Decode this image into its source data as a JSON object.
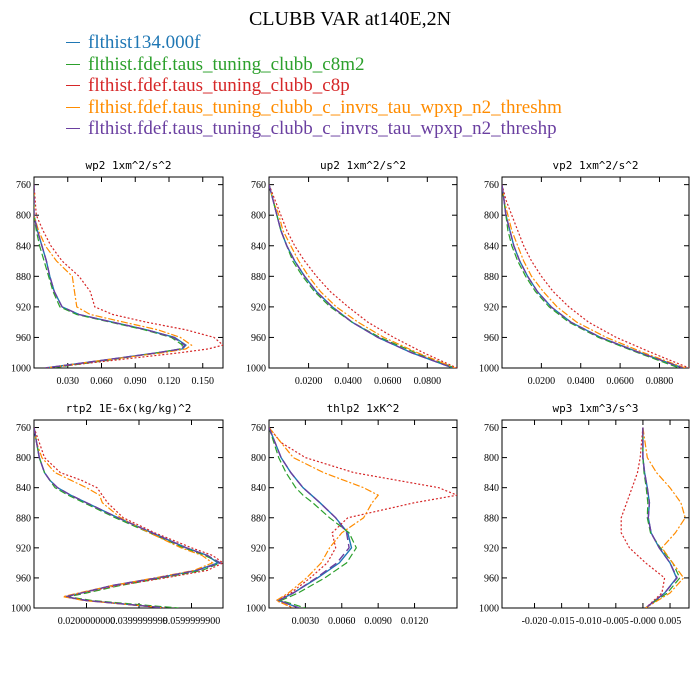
{
  "title": "CLUBB VAR at140E,2N",
  "legend": [
    {
      "label": "flthist134.000f",
      "color": "#1f77b4"
    },
    {
      "label": "flthist.fdef.taus_tuning_clubb_c8m2",
      "color": "#2ca02c"
    },
    {
      "label": "flthist.fdef.taus_tuning_clubb_c8p",
      "color": "#d62728"
    },
    {
      "label": "flthist.fdef.taus_tuning_clubb_c_invrs_tau_wpxp_n2_threshm",
      "color": "#ff8c00"
    },
    {
      "label": "flthist.fdef.taus_tuning_clubb_c_invrs_tau_wpxp_n2_threshp",
      "color": "#6a3fa0"
    }
  ],
  "chart_data": [
    {
      "type": "line",
      "title": "wp2  1xm^2/s^2",
      "xlim": [
        0,
        0.168
      ],
      "ylim": [
        1000,
        750
      ],
      "xticks": [
        0.03,
        0.06,
        0.09,
        0.12,
        0.15
      ],
      "xtick_labels": [
        "0.030",
        "0.060",
        "0.090",
        "0.120",
        "0.150"
      ],
      "yticks": [
        760,
        800,
        840,
        880,
        920,
        960,
        1000
      ],
      "y": [
        760,
        800,
        820,
        840,
        860,
        880,
        900,
        920,
        930,
        940,
        950,
        960,
        970,
        975,
        980,
        990,
        1000
      ],
      "series": [
        {
          "values": [
            0,
            0,
            0.003,
            0.007,
            0.011,
            0.014,
            0.018,
            0.025,
            0.04,
            0.07,
            0.1,
            0.125,
            0.135,
            0.132,
            0.11,
            0.06,
            0.01
          ]
        },
        {
          "values": [
            0,
            0,
            0.002,
            0.005,
            0.009,
            0.013,
            0.017,
            0.023,
            0.038,
            0.068,
            0.098,
            0.122,
            0.132,
            0.13,
            0.11,
            0.065,
            0.015
          ]
        },
        {
          "values": [
            0,
            0.002,
            0.008,
            0.015,
            0.025,
            0.04,
            0.05,
            0.054,
            0.07,
            0.1,
            0.135,
            0.16,
            0.168,
            0.155,
            0.13,
            0.07,
            0.01
          ]
        },
        {
          "values": [
            0,
            0,
            0.004,
            0.01,
            0.02,
            0.034,
            0.036,
            0.038,
            0.05,
            0.08,
            0.11,
            0.13,
            0.14,
            0.135,
            0.115,
            0.06,
            0.01
          ]
        },
        {
          "values": [
            0,
            0,
            0.003,
            0.007,
            0.011,
            0.014,
            0.018,
            0.025,
            0.04,
            0.07,
            0.1,
            0.124,
            0.134,
            0.131,
            0.11,
            0.06,
            0.01
          ]
        }
      ]
    },
    {
      "type": "line",
      "title": "up2  1xm^2/s^2",
      "xlim": [
        0,
        0.095
      ],
      "ylim": [
        1000,
        750
      ],
      "xticks": [
        0.02,
        0.04,
        0.06,
        0.08
      ],
      "xtick_labels": [
        "0.0200",
        "0.0400",
        "0.0600",
        "0.0800"
      ],
      "yticks": [
        760,
        800,
        840,
        880,
        920,
        960,
        1000
      ],
      "y": [
        760,
        780,
        800,
        820,
        840,
        860,
        880,
        900,
        920,
        940,
        960,
        980,
        1000
      ],
      "series": [
        {
          "values": [
            0,
            0.002,
            0.004,
            0.006,
            0.009,
            0.013,
            0.018,
            0.024,
            0.032,
            0.042,
            0.055,
            0.072,
            0.093
          ]
        },
        {
          "values": [
            0,
            0.002,
            0.004,
            0.006,
            0.009,
            0.012,
            0.017,
            0.023,
            0.031,
            0.042,
            0.056,
            0.074,
            0.094
          ]
        },
        {
          "values": [
            0,
            0.003,
            0.006,
            0.009,
            0.013,
            0.018,
            0.024,
            0.031,
            0.04,
            0.05,
            0.063,
            0.078,
            0.095
          ]
        },
        {
          "values": [
            0,
            0.002,
            0.005,
            0.007,
            0.011,
            0.015,
            0.02,
            0.026,
            0.034,
            0.045,
            0.058,
            0.075,
            0.094
          ]
        },
        {
          "values": [
            0,
            0.002,
            0.004,
            0.006,
            0.009,
            0.013,
            0.018,
            0.024,
            0.032,
            0.042,
            0.055,
            0.072,
            0.093
          ]
        }
      ]
    },
    {
      "type": "line",
      "title": "vp2  1xm^2/s^2",
      "xlim": [
        0,
        0.095
      ],
      "ylim": [
        1000,
        750
      ],
      "xticks": [
        0.02,
        0.04,
        0.06,
        0.08
      ],
      "xtick_labels": [
        "0.0200",
        "0.0400",
        "0.0600",
        "0.0800"
      ],
      "yticks": [
        760,
        800,
        840,
        880,
        920,
        960,
        1000
      ],
      "y": [
        760,
        780,
        800,
        820,
        840,
        860,
        880,
        900,
        920,
        940,
        960,
        980,
        1000
      ],
      "series": [
        {
          "values": [
            0,
            0.001,
            0.002,
            0.004,
            0.006,
            0.009,
            0.013,
            0.018,
            0.025,
            0.035,
            0.05,
            0.07,
            0.092
          ]
        },
        {
          "values": [
            0,
            0.001,
            0.002,
            0.003,
            0.005,
            0.008,
            0.012,
            0.017,
            0.024,
            0.034,
            0.049,
            0.069,
            0.09
          ]
        },
        {
          "values": [
            0,
            0.002,
            0.005,
            0.008,
            0.011,
            0.015,
            0.02,
            0.026,
            0.034,
            0.044,
            0.058,
            0.076,
            0.095
          ]
        },
        {
          "values": [
            0,
            0.001,
            0.003,
            0.005,
            0.008,
            0.011,
            0.015,
            0.021,
            0.028,
            0.038,
            0.053,
            0.072,
            0.093
          ]
        },
        {
          "values": [
            0,
            0.001,
            0.002,
            0.004,
            0.006,
            0.009,
            0.013,
            0.018,
            0.025,
            0.035,
            0.05,
            0.07,
            0.092
          ]
        }
      ]
    },
    {
      "type": "line",
      "title": "rtp2  1E-6x(kg/kg)^2",
      "xlim": [
        0,
        0.072
      ],
      "ylim": [
        1000,
        750
      ],
      "xticks": [
        0.02,
        0.04,
        0.06
      ],
      "xtick_labels": [
        "0.0200000000",
        "0.0399999999",
        "0.0599999900"
      ],
      "yticks": [
        760,
        800,
        840,
        880,
        920,
        960,
        1000
      ],
      "y": [
        760,
        780,
        800,
        820,
        830,
        840,
        850,
        860,
        880,
        900,
        920,
        930,
        940,
        950,
        960,
        970,
        980,
        985,
        990,
        1000
      ],
      "series": [
        {
          "values": [
            0,
            0.001,
            0.002,
            0.004,
            0.006,
            0.009,
            0.014,
            0.02,
            0.032,
            0.045,
            0.058,
            0.066,
            0.07,
            0.062,
            0.047,
            0.03,
            0.018,
            0.012,
            0.02,
            0.05
          ]
        },
        {
          "values": [
            0,
            0.001,
            0.002,
            0.004,
            0.006,
            0.008,
            0.013,
            0.019,
            0.031,
            0.044,
            0.057,
            0.065,
            0.071,
            0.064,
            0.049,
            0.033,
            0.02,
            0.013,
            0.022,
            0.055
          ]
        },
        {
          "values": [
            0,
            0.002,
            0.004,
            0.01,
            0.018,
            0.024,
            0.026,
            0.028,
            0.034,
            0.046,
            0.06,
            0.068,
            0.072,
            0.066,
            0.05,
            0.032,
            0.018,
            0.012,
            0.02,
            0.05
          ]
        },
        {
          "values": [
            0,
            0.001,
            0.003,
            0.008,
            0.014,
            0.02,
            0.025,
            0.026,
            0.033,
            0.044,
            0.056,
            0.064,
            0.068,
            0.061,
            0.046,
            0.03,
            0.017,
            0.011,
            0.019,
            0.05
          ]
        },
        {
          "values": [
            0,
            0.001,
            0.002,
            0.004,
            0.006,
            0.009,
            0.014,
            0.02,
            0.032,
            0.045,
            0.058,
            0.066,
            0.071,
            0.062,
            0.047,
            0.03,
            0.018,
            0.012,
            0.02,
            0.05
          ]
        }
      ]
    },
    {
      "type": "line",
      "title": "thlp2  1xK^2",
      "xlim": [
        0,
        0.0155
      ],
      "ylim": [
        1000,
        750
      ],
      "xticks": [
        0.003,
        0.006,
        0.009,
        0.012
      ],
      "xtick_labels": [
        "0.0030",
        "0.0060",
        "0.0090",
        "0.0120"
      ],
      "yticks": [
        760,
        800,
        840,
        880,
        920,
        960,
        1000
      ],
      "y": [
        760,
        780,
        800,
        820,
        840,
        850,
        860,
        880,
        900,
        920,
        940,
        960,
        980,
        990,
        1000
      ],
      "series": [
        {
          "values": [
            0,
            0.0005,
            0.001,
            0.0018,
            0.0028,
            0.0035,
            0.0042,
            0.0055,
            0.0065,
            0.0068,
            0.0058,
            0.004,
            0.002,
            0.0008,
            0.0025
          ]
        },
        {
          "values": [
            0,
            0.0004,
            0.0008,
            0.0014,
            0.0022,
            0.0028,
            0.0036,
            0.005,
            0.0066,
            0.0072,
            0.0064,
            0.0046,
            0.0024,
            0.001,
            0.003
          ]
        },
        {
          "values": [
            0,
            0.001,
            0.003,
            0.007,
            0.014,
            0.0155,
            0.012,
            0.0065,
            0.0052,
            0.0055,
            0.0048,
            0.0034,
            0.0018,
            0.0006,
            0.002
          ]
        },
        {
          "values": [
            0,
            0.001,
            0.002,
            0.0045,
            0.0078,
            0.009,
            0.0085,
            0.0078,
            0.006,
            0.005,
            0.0043,
            0.0031,
            0.0016,
            0.0006,
            0.002
          ]
        },
        {
          "values": [
            0,
            0.0005,
            0.001,
            0.0018,
            0.0028,
            0.0035,
            0.0042,
            0.0055,
            0.0064,
            0.0066,
            0.0056,
            0.0039,
            0.002,
            0.0008,
            0.0025
          ]
        }
      ]
    },
    {
      "type": "line",
      "title": "wp3  1xm^3/s^3",
      "xlim": [
        -0.026,
        0.0085
      ],
      "ylim": [
        1000,
        750
      ],
      "xticks": [
        -0.02,
        -0.015,
        -0.01,
        -0.005,
        0,
        0.005
      ],
      "xtick_labels": [
        "-0.020",
        "-0.015",
        "-0.010",
        "-0.005",
        "-0.000",
        "0.005"
      ],
      "yticks": [
        760,
        800,
        840,
        880,
        920,
        960,
        1000
      ],
      "y": [
        760,
        800,
        820,
        840,
        860,
        880,
        900,
        920,
        940,
        960,
        980,
        1000
      ],
      "series": [
        {
          "values": [
            0,
            0,
            0.0003,
            0.0008,
            0.0012,
            0.001,
            0.0015,
            0.003,
            0.005,
            0.0062,
            0.004,
            0.0005
          ]
        },
        {
          "values": [
            0,
            0,
            0.0002,
            0.0006,
            0.0009,
            0.0008,
            0.0014,
            0.0032,
            0.0055,
            0.0068,
            0.0045,
            0.0005
          ]
        },
        {
          "values": [
            0,
            -0.0005,
            -0.001,
            -0.002,
            -0.003,
            -0.004,
            -0.004,
            -0.0025,
            0.0005,
            0.004,
            0.0035,
            0.0005
          ]
        },
        {
          "values": [
            0,
            0.0008,
            0.0025,
            0.005,
            0.007,
            0.0078,
            0.006,
            0.0035,
            0.0055,
            0.0075,
            0.005,
            0.0005
          ]
        },
        {
          "values": [
            0,
            0,
            0.0003,
            0.0008,
            0.0012,
            0.001,
            0.0015,
            0.003,
            0.005,
            0.0063,
            0.004,
            0.0005
          ]
        }
      ]
    }
  ]
}
